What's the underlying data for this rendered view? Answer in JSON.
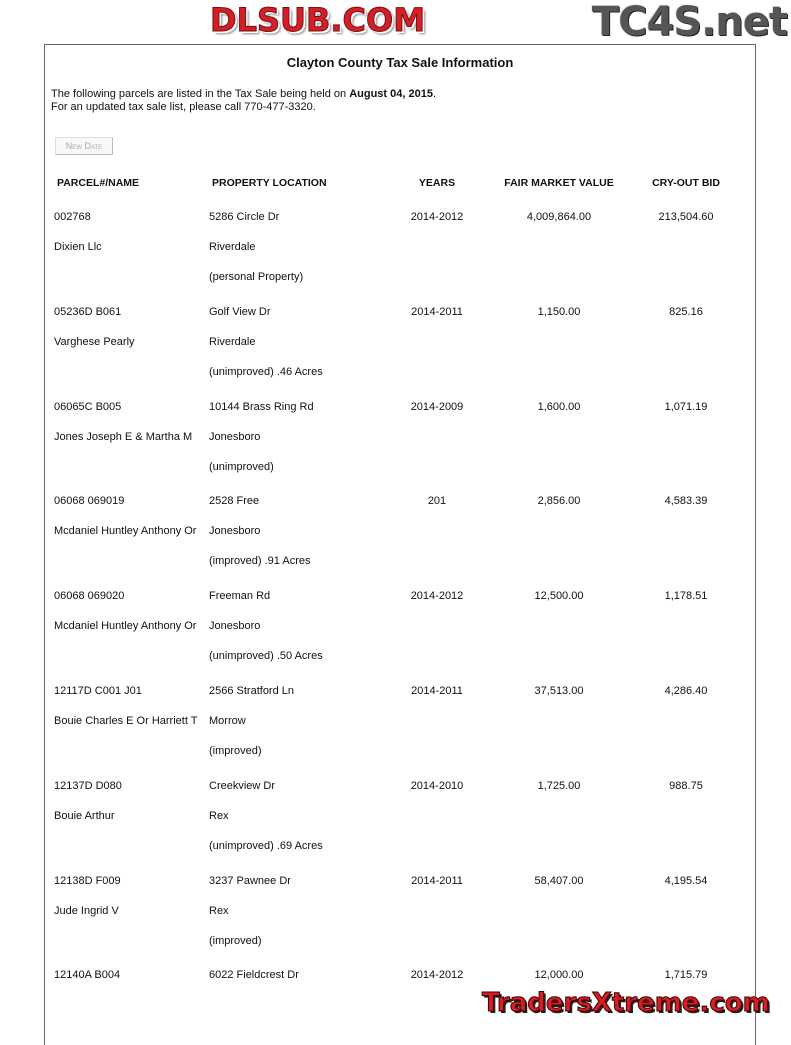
{
  "title": "Clayton County Tax Sale Information",
  "intro": {
    "line1_prefix": "The following parcels are listed in the Tax Sale being held on ",
    "sale_date": "August 04, 2015",
    "line1_suffix": ".",
    "line2": "For an updated tax sale list, please call 770-477-3320."
  },
  "new_date_button": "New Date",
  "columns": [
    "PARCEL#/NAME",
    "PROPERTY LOCATION",
    "YEARS",
    "FAIR MARKET VALUE",
    "CRY-OUT BID"
  ],
  "rows": [
    {
      "parcel": "002768",
      "name": "Dixien Llc",
      "address": "5286 Circle Dr",
      "city": "Riverdale",
      "type": "(personal Property)",
      "years": "2014-2012",
      "fmv": "4,009,864.00",
      "bid": "213,504.60"
    },
    {
      "parcel": "05236D B061",
      "name": "Varghese Pearly",
      "address": "Golf View Dr",
      "city": "Riverdale",
      "type": "(unimproved) .46 Acres",
      "years": "2014-2011",
      "fmv": "1,150.00",
      "bid": "825.16"
    },
    {
      "parcel": "06065C B005",
      "name": "Jones Joseph E & Martha M",
      "address": "10144 Brass Ring Rd",
      "city": "Jonesboro",
      "type": "(unimproved)",
      "years": "2014-2009",
      "fmv": "1,600.00",
      "bid": "1,071.19"
    },
    {
      "parcel": "06068 069019",
      "name": "Mcdaniel Huntley Anthony Or",
      "address": "2528 Free",
      "city": "Jonesboro",
      "type": "(improved) .91 Acres",
      "years": "201",
      "fmv": "2,856.00",
      "bid": "4,583.39"
    },
    {
      "parcel": "06068 069020",
      "name": "Mcdaniel Huntley Anthony Or",
      "address": "Freeman Rd",
      "city": "Jonesboro",
      "type": "(unimproved) .50 Acres",
      "years": "2014-2012",
      "fmv": "12,500.00",
      "bid": "1,178.51"
    },
    {
      "parcel": "12117D C001 J01",
      "name": "Bouie Charles E Or Harriett T",
      "address": "2566 Stratford Ln",
      "city": "Morrow",
      "type": "(improved)",
      "years": "2014-2011",
      "fmv": "37,513.00",
      "bid": "4,286.40"
    },
    {
      "parcel": "12137D D080",
      "name": "Bouie Arthur",
      "address": "Creekview Dr",
      "city": "Rex",
      "type": "(unimproved) .69 Acres",
      "years": "2014-2010",
      "fmv": "1,725.00",
      "bid": "988.75"
    },
    {
      "parcel": "12138D F009",
      "name": "Jude Ingrid V",
      "address": "3237 Pawnee Dr",
      "city": "Rex",
      "type": "(improved)",
      "years": "2014-2011",
      "fmv": "58,407.00",
      "bid": "4,195.54"
    },
    {
      "parcel": "12140A B004",
      "name": "",
      "address": "6022 Fieldcrest Dr",
      "city": "",
      "type": "",
      "years": "2014-2012",
      "fmv": "12,000.00",
      "bid": "1,715.79"
    }
  ],
  "watermarks": {
    "top": "TC4S.net",
    "middle": "DLSUB.COM",
    "bottom": "TradersXtreme.com"
  }
}
